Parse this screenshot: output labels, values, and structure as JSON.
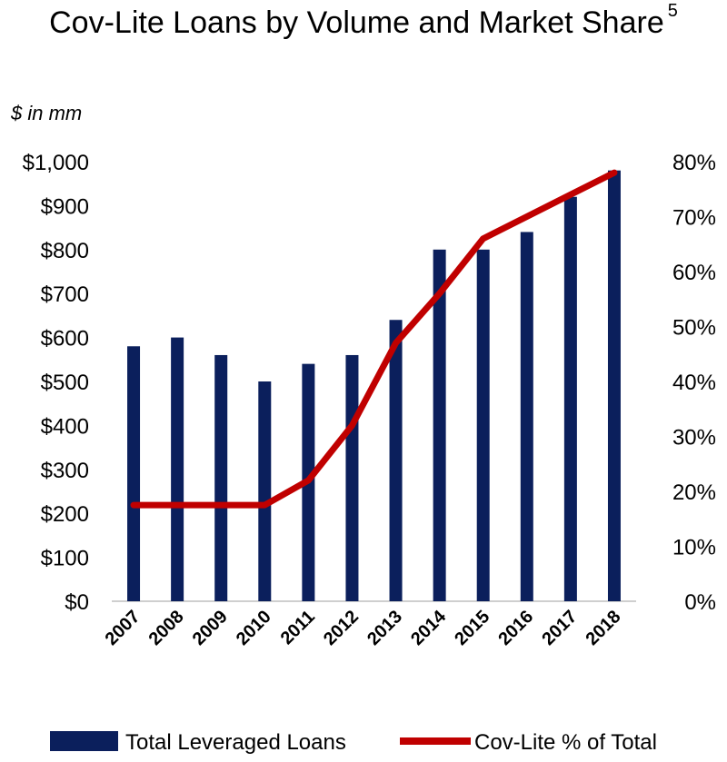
{
  "title": "Cov-Lite Loans by Volume and Market Share",
  "title_footnote": "5",
  "unit_label": "$ in mm",
  "colors": {
    "bars": "#0b1f5c",
    "line": "#c00000"
  },
  "chart_data": {
    "type": "bar",
    "categories": [
      "2007",
      "2008",
      "2009",
      "2010",
      "2011",
      "2012",
      "2013",
      "2014",
      "2015",
      "2016",
      "2017",
      "2018"
    ],
    "series": [
      {
        "name": "Total Leveraged Loans",
        "type": "bar",
        "axis": "left",
        "values": [
          580,
          600,
          560,
          500,
          540,
          560,
          640,
          800,
          800,
          840,
          920,
          980
        ]
      },
      {
        "name": "Cov-Lite % of Total",
        "type": "line",
        "axis": "right",
        "values": [
          17.5,
          17.5,
          17.5,
          17.5,
          22,
          32,
          47,
          56,
          66,
          70,
          74,
          78
        ]
      }
    ],
    "ylim_left": [
      0,
      1000
    ],
    "ylim_right": [
      0,
      80
    ],
    "yticks_left": [
      "$0",
      "$100",
      "$200",
      "$300",
      "$400",
      "$500",
      "$600",
      "$700",
      "$800",
      "$900",
      "$1,000"
    ],
    "yticks_right": [
      "0%",
      "10%",
      "20%",
      "30%",
      "40%",
      "50%",
      "60%",
      "70%",
      "80%"
    ],
    "legend_position": "bottom",
    "grid": false
  }
}
